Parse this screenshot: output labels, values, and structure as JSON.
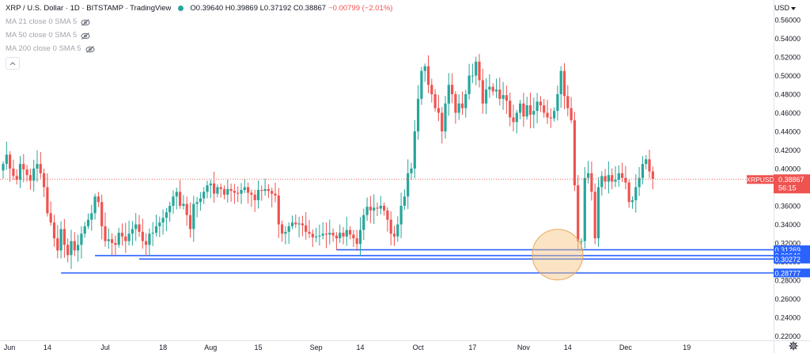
{
  "header": {
    "title": "XRP / U.S. Dollar · 1D · BITSTAMP · TradingView",
    "ohlc": "O0.39640 H0.39869 L0.37192 C0.38867",
    "change": "−0.00799 (−2.01%)",
    "indicators": [
      "MA 21 close 0 SMA 5",
      "MA 50 close 0 SMA 5",
      "MA 200 close 0 SMA 5"
    ],
    "currency": "USD"
  },
  "colors": {
    "up": "#26a69a",
    "down": "#ef5350",
    "level": "#2962ff",
    "highlight": "#f6c47b"
  },
  "chart_data": {
    "type": "candlestick",
    "symbol": "XRPUSD",
    "y_axis": {
      "range": [
        0.22,
        0.56
      ],
      "ticks": [
        "0.22000",
        "0.24000",
        "0.26000",
        "0.28000",
        "0.30000",
        "0.32000",
        "0.34000",
        "0.36000",
        "0.38000",
        "0.40000",
        "0.42000",
        "0.44000",
        "0.46000",
        "0.48000",
        "0.50000",
        "0.52000",
        "0.54000",
        "0.56000"
      ]
    },
    "x_axis": {
      "start": "2022-06-01",
      "ticks": [
        {
          "label": "Jun",
          "date": "2022-06-01"
        },
        {
          "label": "14",
          "date": "2022-06-14"
        },
        {
          "label": "Jul",
          "date": "2022-07-01"
        },
        {
          "label": "18",
          "date": "2022-07-18"
        },
        {
          "label": "Aug",
          "date": "2022-08-01"
        },
        {
          "label": "15",
          "date": "2022-08-15"
        },
        {
          "label": "Sep",
          "date": "2022-09-01"
        },
        {
          "label": "14",
          "date": "2022-09-14"
        },
        {
          "label": "Oct",
          "date": "2022-10-01"
        },
        {
          "label": "17",
          "date": "2022-10-17"
        },
        {
          "label": "Nov",
          "date": "2022-11-01"
        },
        {
          "label": "14",
          "date": "2022-11-14"
        },
        {
          "label": "Dec",
          "date": "2022-12-01"
        },
        {
          "label": "19",
          "date": "2022-12-19"
        }
      ]
    },
    "last_price": {
      "label": "XRPUSD",
      "value": "0.38867",
      "countdown": "56:15"
    },
    "levels": [
      {
        "value": 0.31269,
        "label": "0.31269",
        "from": "2022-09-07"
      },
      {
        "value": 0.30646,
        "label": "0.30646",
        "from": "2022-06-28"
      },
      {
        "value": 0.30272,
        "label": "0.30272",
        "from": "2022-07-11"
      },
      {
        "value": 0.28777,
        "label": "0.28777",
        "from": "2022-06-18"
      }
    ],
    "highlight_circle": {
      "date": "2022-11-11",
      "value": 0.3075
    },
    "closes": [
      0.405,
      0.415,
      0.4,
      0.392,
      0.388,
      0.405,
      0.399,
      0.393,
      0.387,
      0.4,
      0.405,
      0.395,
      0.38,
      0.352,
      0.342,
      0.325,
      0.312,
      0.335,
      0.318,
      0.307,
      0.322,
      0.312,
      0.318,
      0.33,
      0.338,
      0.345,
      0.352,
      0.37,
      0.364,
      0.338,
      0.322,
      0.324,
      0.32,
      0.318,
      0.331,
      0.327,
      0.322,
      0.33,
      0.335,
      0.34,
      0.332,
      0.322,
      0.318,
      0.33,
      0.331,
      0.338,
      0.342,
      0.347,
      0.353,
      0.36,
      0.37,
      0.375,
      0.36,
      0.362,
      0.35,
      0.335,
      0.362,
      0.364,
      0.368,
      0.375,
      0.382,
      0.384,
      0.373,
      0.38,
      0.378,
      0.372,
      0.378,
      0.376,
      0.374,
      0.373,
      0.377,
      0.38,
      0.374,
      0.372,
      0.366,
      0.377,
      0.376,
      0.378,
      0.376,
      0.373,
      0.371,
      0.34,
      0.33,
      0.332,
      0.338,
      0.342,
      0.34,
      0.341,
      0.339,
      0.332,
      0.33,
      0.326,
      0.327,
      0.328,
      0.33,
      0.329,
      0.331,
      0.328,
      0.325,
      0.331,
      0.327,
      0.334,
      0.329,
      0.325,
      0.319,
      0.334,
      0.35,
      0.359,
      0.355,
      0.358,
      0.357,
      0.36,
      0.355,
      0.345,
      0.33,
      0.327,
      0.34,
      0.36,
      0.37,
      0.395,
      0.4,
      0.44,
      0.475,
      0.505,
      0.51,
      0.49,
      0.48,
      0.465,
      0.46,
      0.44,
      0.47,
      0.49,
      0.48,
      0.46,
      0.47,
      0.465,
      0.48,
      0.5,
      0.5,
      0.515,
      0.495,
      0.47,
      0.485,
      0.488,
      0.483,
      0.485,
      0.475,
      0.479,
      0.473,
      0.455,
      0.45,
      0.46,
      0.47,
      0.456,
      0.468,
      0.458,
      0.462,
      0.472,
      0.468,
      0.46,
      0.455,
      0.454,
      0.462,
      0.48,
      0.505,
      0.478,
      0.465,
      0.452,
      0.382,
      0.322,
      0.322,
      0.39,
      0.395,
      0.375,
      0.325,
      0.38,
      0.392,
      0.386,
      0.393,
      0.386,
      0.388,
      0.395,
      0.39,
      0.385,
      0.364,
      0.366,
      0.38,
      0.39,
      0.405,
      0.41,
      0.397,
      0.389
    ],
    "opens_start": 0.398
  }
}
